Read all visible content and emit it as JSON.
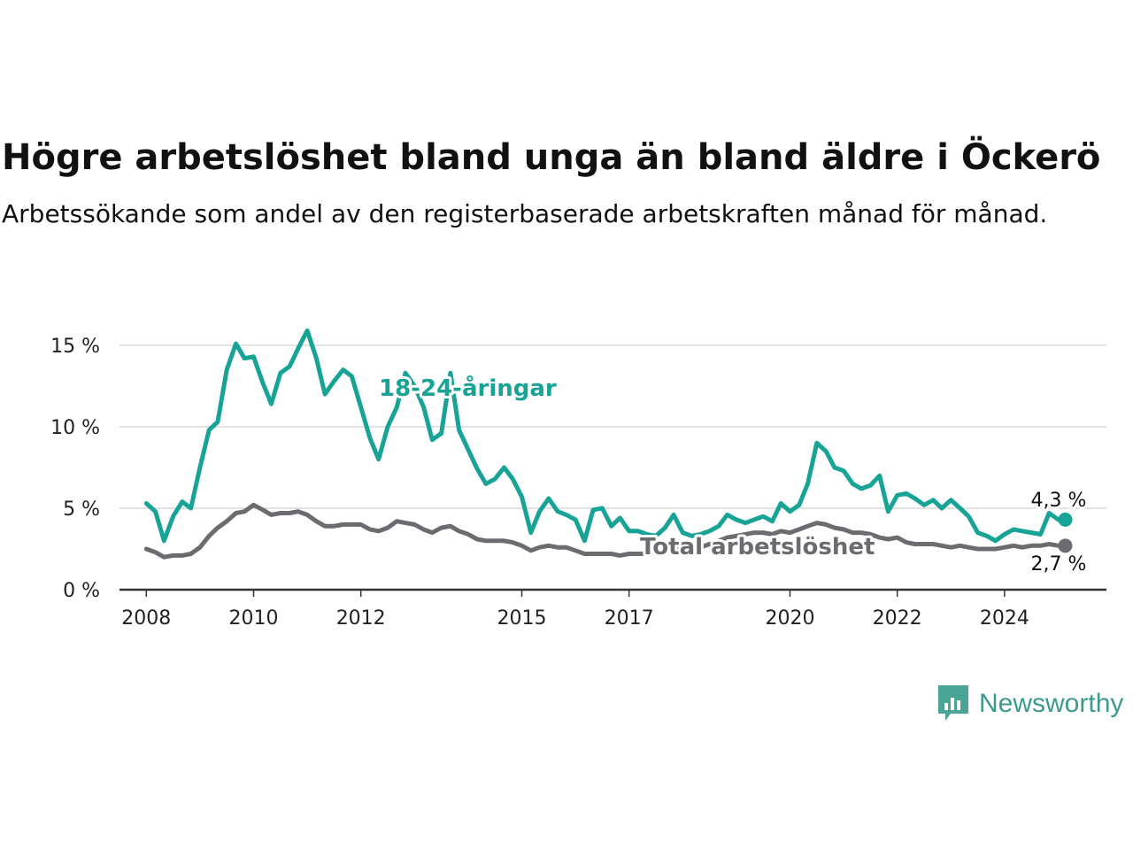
{
  "brand": {
    "name": "Newsworthy",
    "color": "#3a9a8c"
  },
  "chart_data": {
    "type": "line",
    "title": "Högre arbetslöshet bland unga än bland äldre i Öckerö",
    "subtitle": "Arbetssökande som andel av den registerbaserade arbetskraften månad för månad.",
    "xlabel": "",
    "ylabel": "",
    "ylim": [
      0,
      15
    ],
    "yticks": [
      0,
      5,
      10,
      15
    ],
    "ytick_labels": [
      "0 %",
      "5 %",
      "10 %",
      "15 %"
    ],
    "xticks": [
      2008,
      2010,
      2012,
      2015,
      2017,
      2020,
      2022,
      2024
    ],
    "xtick_labels": [
      "2008",
      "2010",
      "2012",
      "2015",
      "2017",
      "2020",
      "2022",
      "2024"
    ],
    "xlim": [
      2007.5,
      2025.9
    ],
    "grid": true,
    "legend": "inline labels",
    "series": [
      {
        "name": "18-24-åringar",
        "color": "#17a396",
        "end_label": "4,3 %",
        "x": [
          2008.0,
          2008.17,
          2008.33,
          2008.5,
          2008.67,
          2008.83,
          2009.0,
          2009.17,
          2009.33,
          2009.5,
          2009.67,
          2009.83,
          2010.0,
          2010.17,
          2010.33,
          2010.5,
          2010.67,
          2010.83,
          2011.0,
          2011.17,
          2011.33,
          2011.5,
          2011.67,
          2011.83,
          2012.0,
          2012.17,
          2012.33,
          2012.5,
          2012.67,
          2012.83,
          2013.0,
          2013.17,
          2013.33,
          2013.5,
          2013.67,
          2013.83,
          2014.0,
          2014.17,
          2014.33,
          2014.5,
          2014.67,
          2014.83,
          2015.0,
          2015.17,
          2015.33,
          2015.5,
          2015.67,
          2015.83,
          2016.0,
          2016.17,
          2016.33,
          2016.5,
          2016.67,
          2016.83,
          2017.0,
          2017.17,
          2017.33,
          2017.5,
          2017.67,
          2017.83,
          2018.0,
          2018.17,
          2018.33,
          2018.5,
          2018.67,
          2018.83,
          2019.0,
          2019.17,
          2019.33,
          2019.5,
          2019.67,
          2019.83,
          2020.0,
          2020.17,
          2020.33,
          2020.5,
          2020.67,
          2020.83,
          2021.0,
          2021.17,
          2021.33,
          2021.5,
          2021.67,
          2021.83,
          2022.0,
          2022.17,
          2022.33,
          2022.5,
          2022.67,
          2022.83,
          2023.0,
          2023.17,
          2023.33,
          2023.5,
          2023.67,
          2023.83,
          2024.0,
          2024.17,
          2024.33,
          2024.5,
          2024.67,
          2024.83,
          2025.0
        ],
        "values": [
          5.3,
          4.8,
          3.0,
          4.5,
          5.4,
          5.0,
          7.5,
          9.8,
          10.3,
          13.5,
          15.1,
          14.2,
          14.3,
          12.7,
          11.4,
          13.3,
          13.7,
          14.8,
          15.9,
          14.2,
          12.0,
          12.8,
          13.5,
          13.1,
          11.2,
          9.3,
          8.0,
          10.0,
          11.2,
          13.3,
          12.5,
          11.2,
          9.2,
          9.6,
          13.3,
          9.8,
          8.6,
          7.4,
          6.5,
          6.8,
          7.5,
          6.8,
          5.7,
          3.5,
          4.8,
          5.6,
          4.8,
          4.6,
          4.3,
          3.0,
          4.9,
          5.0,
          3.9,
          4.4,
          3.6,
          3.6,
          3.4,
          3.3,
          3.8,
          4.6,
          3.5,
          3.3,
          3.4,
          3.6,
          3.9,
          4.6,
          4.3,
          4.1,
          4.3,
          4.5,
          4.2,
          5.3,
          4.8,
          5.2,
          6.5,
          9.0,
          8.5,
          7.5,
          7.3,
          6.5,
          6.2,
          6.4,
          7.0,
          4.8,
          5.8,
          5.9,
          5.6,
          5.2,
          5.5,
          5.0,
          5.5,
          5.0,
          4.5,
          3.5,
          3.3,
          3.0,
          3.4,
          3.7,
          3.6,
          3.5,
          3.4,
          4.7,
          4.3
        ]
      },
      {
        "name": "Total arbetslöshet",
        "color": "#6b6b70",
        "end_label": "2,7 %",
        "x": [
          2008.0,
          2008.17,
          2008.33,
          2008.5,
          2008.67,
          2008.83,
          2009.0,
          2009.17,
          2009.33,
          2009.5,
          2009.67,
          2009.83,
          2010.0,
          2010.17,
          2010.33,
          2010.5,
          2010.67,
          2010.83,
          2011.0,
          2011.17,
          2011.33,
          2011.5,
          2011.67,
          2011.83,
          2012.0,
          2012.17,
          2012.33,
          2012.5,
          2012.67,
          2012.83,
          2013.0,
          2013.17,
          2013.33,
          2013.5,
          2013.67,
          2013.83,
          2014.0,
          2014.17,
          2014.33,
          2014.5,
          2014.67,
          2014.83,
          2015.0,
          2015.17,
          2015.33,
          2015.5,
          2015.67,
          2015.83,
          2016.0,
          2016.17,
          2016.33,
          2016.5,
          2016.67,
          2016.83,
          2017.0,
          2017.17,
          2017.33,
          2017.5,
          2017.67,
          2017.83,
          2018.0,
          2018.17,
          2018.33,
          2018.5,
          2018.67,
          2018.83,
          2019.0,
          2019.17,
          2019.33,
          2019.5,
          2019.67,
          2019.83,
          2020.0,
          2020.17,
          2020.33,
          2020.5,
          2020.67,
          2020.83,
          2021.0,
          2021.17,
          2021.33,
          2021.5,
          2021.67,
          2021.83,
          2022.0,
          2022.17,
          2022.33,
          2022.5,
          2022.67,
          2022.83,
          2023.0,
          2023.17,
          2023.33,
          2023.5,
          2023.67,
          2023.83,
          2024.0,
          2024.17,
          2024.33,
          2024.5,
          2024.67,
          2024.83,
          2025.0
        ],
        "values": [
          2.5,
          2.3,
          2.0,
          2.1,
          2.1,
          2.2,
          2.6,
          3.3,
          3.8,
          4.2,
          4.7,
          4.8,
          5.2,
          4.9,
          4.6,
          4.7,
          4.7,
          4.8,
          4.6,
          4.2,
          3.9,
          3.9,
          4.0,
          4.0,
          4.0,
          3.7,
          3.6,
          3.8,
          4.2,
          4.1,
          4.0,
          3.7,
          3.5,
          3.8,
          3.9,
          3.6,
          3.4,
          3.1,
          3.0,
          3.0,
          3.0,
          2.9,
          2.7,
          2.4,
          2.6,
          2.7,
          2.6,
          2.6,
          2.4,
          2.2,
          2.2,
          2.2,
          2.2,
          2.1,
          2.2,
          2.2,
          2.2,
          2.4,
          2.5,
          2.6,
          2.6,
          2.5,
          2.6,
          2.8,
          3.0,
          3.2,
          3.3,
          3.4,
          3.5,
          3.5,
          3.4,
          3.6,
          3.5,
          3.7,
          3.9,
          4.1,
          4.0,
          3.8,
          3.7,
          3.5,
          3.5,
          3.4,
          3.2,
          3.1,
          3.2,
          2.9,
          2.8,
          2.8,
          2.8,
          2.7,
          2.6,
          2.7,
          2.6,
          2.5,
          2.5,
          2.5,
          2.6,
          2.7,
          2.6,
          2.7,
          2.7,
          2.8,
          2.7
        ]
      }
    ]
  }
}
